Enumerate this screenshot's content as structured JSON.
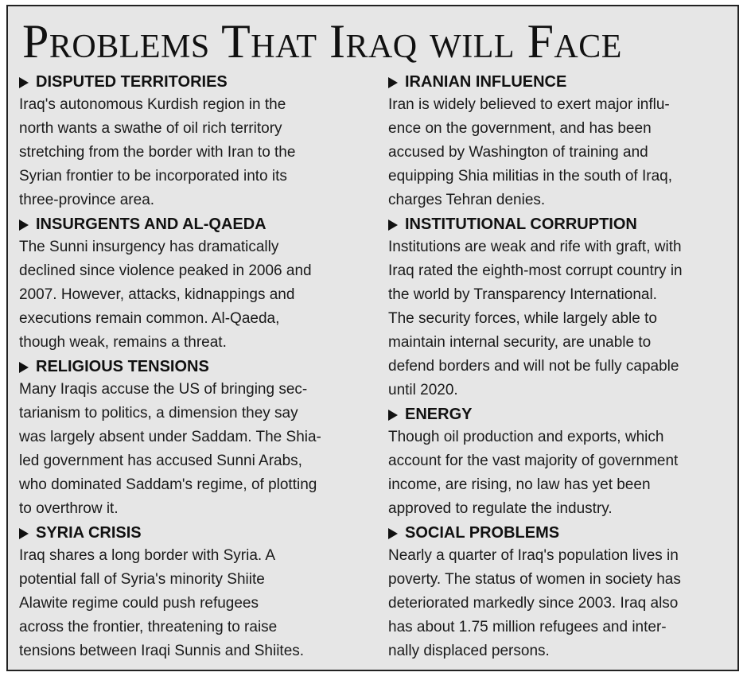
{
  "title": "Problems That Iraq will Face",
  "left": [
    {
      "heading": "DISPUTED TERRITORIES",
      "lines": [
        "Iraq's autonomous Kurdish region in the",
        "north wants a swathe of oil rich territory",
        "stretching from the border with Iran to the",
        "Syrian frontier to be incorporated into its",
        "three-province area."
      ]
    },
    {
      "heading": "INSURGENTS AND AL-QAEDA",
      "lines": [
        "The Sunni insurgency has dramatically",
        "declined since violence peaked in 2006 and",
        "2007. However, attacks, kidnappings and",
        "executions remain common. Al-Qaeda,",
        "though weak, remains a threat."
      ]
    },
    {
      "heading": "RELIGIOUS TENSIONS",
      "lines": [
        "Many Iraqis accuse the US of bringing sec-",
        "tarianism to politics, a dimension they say",
        "was largely absent under Saddam. The Shia-",
        "led government has accused Sunni Arabs,",
        "who dominated Saddam's regime, of plotting",
        "to overthrow it."
      ]
    },
    {
      "heading": "SYRIA CRISIS",
      "lines": [
        "Iraq shares a long border with Syria. A",
        "potential fall of Syria's minority Shiite",
        "Alawite regime could push refugees",
        "across the frontier, threatening to raise",
        "tensions between Iraqi Sunnis and Shiites."
      ]
    }
  ],
  "right": [
    {
      "heading": "IRANIAN INFLUENCE",
      "lines": [
        "Iran is widely believed to exert major influ-",
        "ence on the government, and has been",
        "accused by Washington of training and",
        "equipping Shia militias in the south of Iraq,",
        "charges Tehran denies."
      ]
    },
    {
      "heading": "INSTITUTIONAL CORRUPTION",
      "lines": [
        "Institutions are weak and rife with graft, with",
        "Iraq rated the eighth-most corrupt country in",
        "the world by Transparency International.",
        "The security forces, while largely able to",
        "maintain internal security, are unable to",
        "defend borders and will not be fully capable",
        "until 2020."
      ]
    },
    {
      "heading": "ENERGY",
      "lines": [
        "Though oil production and exports, which",
        "account for the vast majority of government",
        "income, are rising, no law has yet been",
        "approved to regulate the industry."
      ]
    },
    {
      "heading": "SOCIAL PROBLEMS",
      "lines": [
        "Nearly a quarter of Iraq's population lives in",
        "poverty. The status of women in society has",
        "deteriorated markedly since 2003. Iraq also",
        "has about 1.75 million refugees and inter-",
        "nally displaced persons."
      ]
    }
  ]
}
